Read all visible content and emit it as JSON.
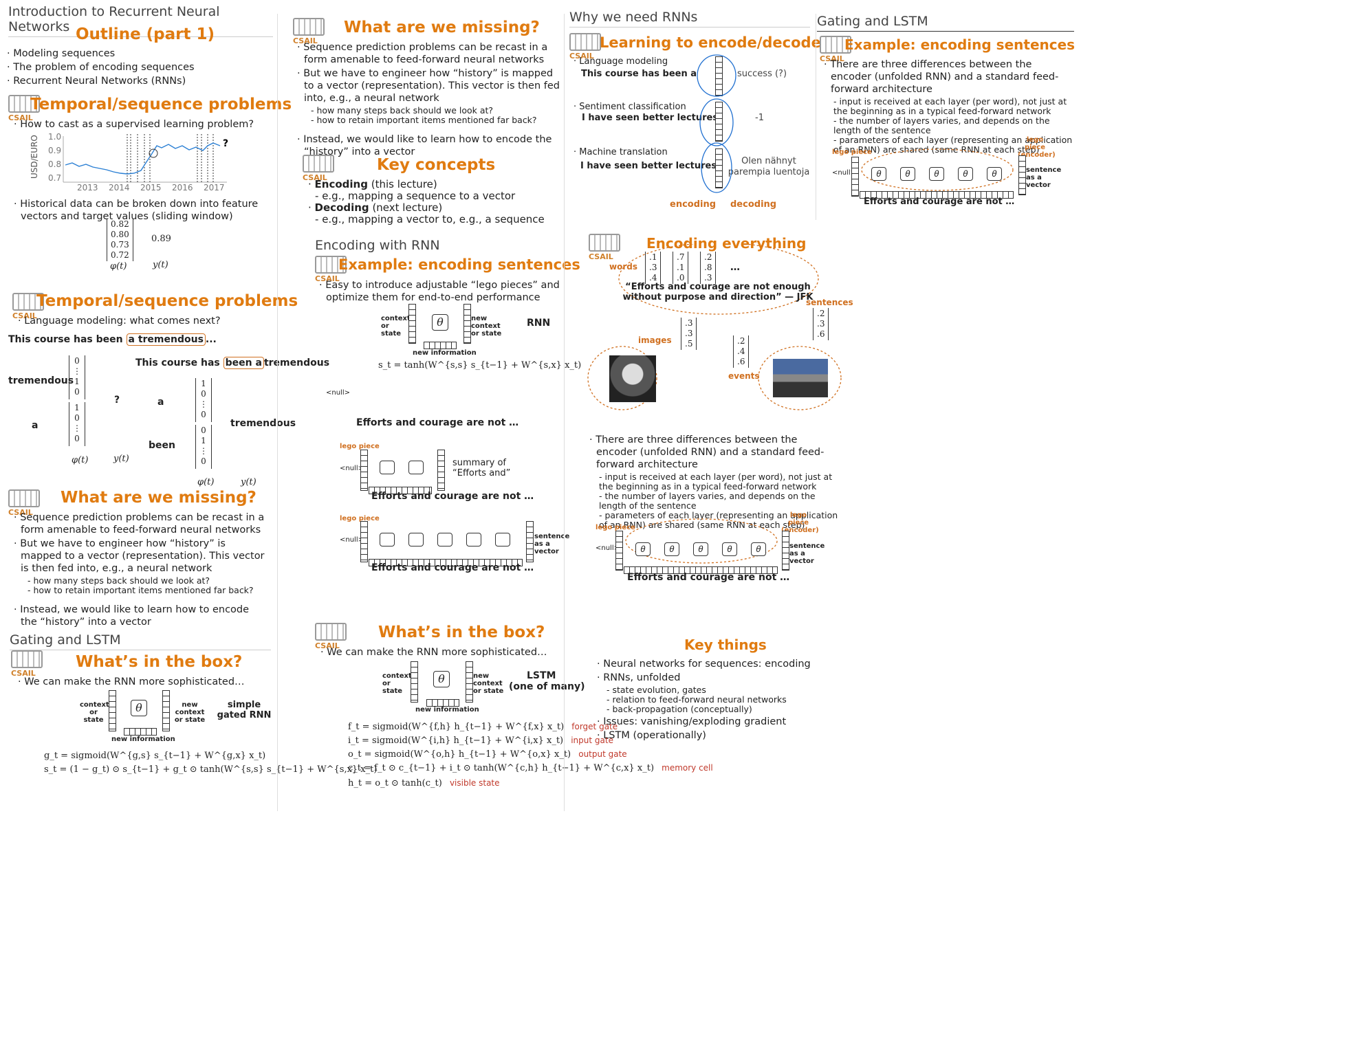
{
  "col1": {
    "header": "Introduction to Recurrent Neural Networks",
    "outline": {
      "title": "Outline (part 1)",
      "items": [
        "Modeling sequences",
        "The problem of encoding sequences",
        "Recurrent Neural Networks (RNNs)"
      ]
    },
    "temporal1": {
      "title": "Temporal/sequence problems",
      "bullet": "How to cast as a supervised learning problem?",
      "ylabel": "USD/EURO",
      "yticks": [
        "1.0",
        "0.9",
        "0.8",
        "0.7"
      ],
      "xticks": [
        "2013",
        "2014",
        "2015",
        "2016",
        "2017"
      ],
      "bullet2": "Historical data can be broken down into feature vectors and target values (sliding window)",
      "vector": [
        "0.82",
        "0.80",
        "0.73",
        "0.72"
      ],
      "target": "0.89",
      "phi": "φ(t)",
      "y": "y(t)"
    },
    "temporal2": {
      "title": "Temporal/sequence problems",
      "bullet": "Language modeling: what comes next?",
      "sentence1": "This course has been",
      "highlight1": "a tremendous",
      "ellipsis": "...",
      "sentence2": "This course has",
      "highlight2": "been a",
      "word_tremendous": "tremendous",
      "word_a": "a",
      "word_been": "been",
      "q": "?",
      "phi": "φ(t)",
      "y": "y(t)"
    },
    "missing": {
      "title": "What are we missing?",
      "b1": "Sequence prediction problems can be recast in a form amenable to feed-forward neural networks",
      "b2": "But we have to engineer how “history” is mapped to a vector (representation). This vector is then fed into, e.g., a neural network",
      "s1": "how many steps back should we look at?",
      "s2": "how to retain important items mentioned far back?",
      "b3": "Instead, we would like to learn how to encode the “history” into a vector"
    },
    "gating_header": "Gating and LSTM",
    "box": {
      "title": "What’s in the box?",
      "bullet": "We can make the RNN more sophisticated…",
      "context": "context or state",
      "newcontext": "new context or state",
      "newinfo": "new information",
      "label": "simple gated RNN",
      "theta": "θ",
      "eq1": "g_t = sigmoid(W^{g,s} s_{t−1} + W^{g,x} x_t)",
      "eq2": "s_t = (1 − g_t) ⊙ s_{t−1} + g_t ⊙ tanh(W^{s,s} s_{t−1} + W^{s,x} x_t)"
    }
  },
  "col2": {
    "missing": {
      "title": "What are we missing?",
      "b1": "Sequence prediction problems can be recast in a form amenable to feed-forward neural networks",
      "b2": "But we have to engineer how “history” is mapped to a vector (representation). This vector is then fed into, e.g., a neural network",
      "s1": "how many steps back should we look at?",
      "s2": "how to retain important items mentioned far back?",
      "b3": "Instead, we would like to learn how to encode the “history” into a vector"
    },
    "key": {
      "title": "Key concepts",
      "enc": "Encoding",
      "enc_note": "(this lecture)",
      "enc_sub": "e.g., mapping a sequence to a vector",
      "dec": "Decoding",
      "dec_note": "(next lecture)",
      "dec_sub": "e.g., mapping a vector to, e.g., a sequence"
    },
    "encrnn_header": "Encoding with RNN",
    "example": {
      "title": "Example: encoding sentences",
      "bullet": "Easy to introduce adjustable “lego pieces” and optimize them for end-to-end performance",
      "context": "context or state",
      "newcontext": "new context or state",
      "newinfo": "new information",
      "rnn": "RNN",
      "eq": "s_t = tanh(W^{s,s} s_{t−1} + W^{s,x} x_t)",
      "null": "<null>",
      "sentence": "Efforts  and  courage   are    not     …",
      "lego": "lego piece",
      "summary": "summary of “Efforts  and”",
      "sent_vec": "sentence as a vector",
      "theta": "θ"
    },
    "box": {
      "title": "What’s in the box?",
      "bullet": "We can make the RNN more sophisticated…",
      "context": "context or state",
      "newcontext": "new context or state",
      "newinfo": "new information",
      "label1": "LSTM",
      "label2": "(one of many)",
      "theta": "θ",
      "eqs": [
        {
          "eq": "f_t = sigmoid(W^{f,h} h_{t−1} + W^{f,x} x_t)",
          "tag": "forget gate"
        },
        {
          "eq": "i_t = sigmoid(W^{i,h} h_{t−1} + W^{i,x} x_t)",
          "tag": "input gate"
        },
        {
          "eq": "o_t = sigmoid(W^{o,h} h_{t−1} + W^{o,x} x_t)",
          "tag": "output gate"
        },
        {
          "eq": "c_t = f_t ⊙ c_{t−1} + i_t ⊙ tanh(W^{c,h} h_{t−1} + W^{c,x} x_t)",
          "tag": "memory cell"
        },
        {
          "eq": "h_t = o_t ⊙ tanh(c_t)",
          "tag": "visible state"
        }
      ]
    }
  },
  "col3": {
    "why_header": "Why we need RNNs",
    "learn": {
      "title": "Learning to encode/decode",
      "lm": "Language modeling",
      "lm_sent": "This course has been a",
      "lm_out": "success (?)",
      "sent": "Sentiment classification",
      "sent_sent": "I have seen better lectures",
      "sent_out": "-1",
      "mt": "Machine translation",
      "mt_sent": "I have seen better lectures",
      "mt_out": "Olen nähnyt parempia luentoja",
      "encoding": "encoding",
      "decoding": "decoding"
    },
    "everything": {
      "title": "Encoding everything",
      "words": "words",
      "wv1": [
        ".1",
        ".3",
        ".4"
      ],
      "wv2": [
        ".7",
        ".1",
        ".0"
      ],
      "wv3": [
        ".2",
        ".8",
        ".3"
      ],
      "dots": "…",
      "quote": "“Efforts and courage are not enough without purpose and direction” — JFK",
      "sentences": "sentences",
      "sv": [
        ".2",
        ".3",
        ".6"
      ],
      "images": "images",
      "iv": [
        ".3",
        ".3",
        ".5"
      ],
      "events": "events",
      "ev": [
        ".2",
        ".4",
        ".6"
      ],
      "b": "There are three differences between the encoder (unfolded RNN) and a standard feed-forward architecture",
      "s1": "input is received at each layer (per word), not just at the beginning as in a typical feed-forward network",
      "s2": "the number of layers varies, and depends on the length of the sentence",
      "s3": "parameters of each layer (representing an application of an RNN) are shared (same RNN at each step)",
      "lego": "lego piece",
      "lego_enc": "lego piece (encoder)",
      "null": "<null>",
      "sent_vec": "sentence as a vector",
      "sentence": "Efforts  and  courage   are    not     …",
      "theta": "θ"
    },
    "key": {
      "title": "Key things",
      "b1": "Neural networks for sequences: encoding",
      "b2": "RNNs, unfolded",
      "s1": "state evolution, gates",
      "s2": "relation to feed-forward neural networks",
      "s3": "back-propagation (conceptually)",
      "b3": "Issues: vanishing/exploding gradient",
      "b4": "LSTM (operationally)"
    }
  },
  "col4": {
    "header": "Gating and LSTM",
    "title": "Example: encoding sentences",
    "b": "There are three differences between the encoder (unfolded RNN) and a standard feed-forward architecture",
    "s1": "input is received at each layer (per word), not just at the beginning as in a typical feed-forward network",
    "s2": "the number of layers varies, and depends on the length of the sentence",
    "s3": "parameters of each layer (representing an application of an RNN) are shared (same RNN at each step)",
    "lego": "lego piece",
    "lego_enc": "lego piece (encoder)",
    "null": "<null>",
    "sent_vec": "sentence as a vector",
    "sentence": "Efforts  and  courage   are    not     …",
    "theta": "θ"
  },
  "logo_text": "CSAIL",
  "colors": {
    "accent": "#e07b10",
    "ink": "#1f6fd0",
    "red": "#c0392b"
  }
}
